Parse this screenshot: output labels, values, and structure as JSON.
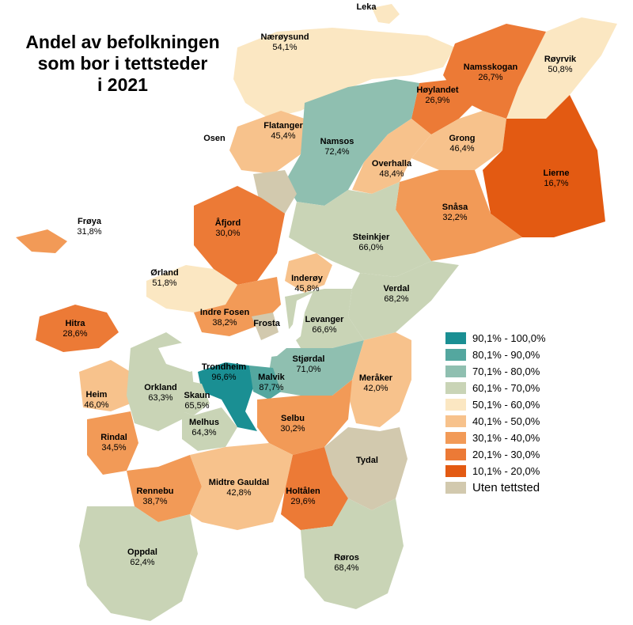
{
  "title": {
    "line1": "Andel av befolkningen",
    "line2": "som bor i tettsteder",
    "line3": "i 2021"
  },
  "colors": {
    "c90": "#1a8f93",
    "c80": "#54a79f",
    "c70": "#8fbfb0",
    "c60": "#c9d4b6",
    "c50": "#fbe7c2",
    "c40": "#f7c28c",
    "c30": "#f29a57",
    "c20": "#ec7a36",
    "c10": "#e35a12",
    "none": "#d2c9ae"
  },
  "legend": [
    {
      "label": "90,1% - 100,0%",
      "color": "#1a8f93"
    },
    {
      "label": "80,1% - 90,0%",
      "color": "#54a79f"
    },
    {
      "label": "70,1% - 80,0%",
      "color": "#8fbfb0"
    },
    {
      "label": "60,1% - 70,0%",
      "color": "#c9d4b6"
    },
    {
      "label": "50,1% - 60,0%",
      "color": "#fbe7c2"
    },
    {
      "label": "40,1% - 50,0%",
      "color": "#f7c28c"
    },
    {
      "label": "30,1% - 40,0%",
      "color": "#f29a57"
    },
    {
      "label": "20,1% - 30,0%",
      "color": "#ec7a36"
    },
    {
      "label": "10,1% - 20,0%",
      "color": "#e35a12"
    },
    {
      "label": "Uten tettsted",
      "color": "#d2c9ae"
    }
  ],
  "municipalities": [
    {
      "name": "Leka",
      "value": ""
    },
    {
      "name": "Nærøysund",
      "value": "54,1%"
    },
    {
      "name": "Røyrvik",
      "value": "50,8%"
    },
    {
      "name": "Namsskogan",
      "value": "26,7%"
    },
    {
      "name": "Høylandet",
      "value": "26,9%"
    },
    {
      "name": "Flatanger",
      "value": "45,4%"
    },
    {
      "name": "Namsos",
      "value": "72,4%"
    },
    {
      "name": "Osen",
      "value": ""
    },
    {
      "name": "Grong",
      "value": "46,4%"
    },
    {
      "name": "Overhalla",
      "value": "48,4%"
    },
    {
      "name": "Lierne",
      "value": "16,7%"
    },
    {
      "name": "Frøya",
      "value": "31,8%"
    },
    {
      "name": "Åfjord",
      "value": "30,0%"
    },
    {
      "name": "Snåsa",
      "value": "32,2%"
    },
    {
      "name": "Steinkjer",
      "value": "66,0%"
    },
    {
      "name": "Ørland",
      "value": "51,8%"
    },
    {
      "name": "Inderøy",
      "value": "45,8%"
    },
    {
      "name": "Verdal",
      "value": "68,2%"
    },
    {
      "name": "Indre Fosen",
      "value": "38,2%"
    },
    {
      "name": "Frosta",
      "value": ""
    },
    {
      "name": "Levanger",
      "value": "66,6%"
    },
    {
      "name": "Hitra",
      "value": "28,6%"
    },
    {
      "name": "Stjørdal",
      "value": "71,0%"
    },
    {
      "name": "Trondheim",
      "value": "96,6%"
    },
    {
      "name": "Malvik",
      "value": "87,7%"
    },
    {
      "name": "Meråker",
      "value": "42,0%"
    },
    {
      "name": "Heim",
      "value": "46,0%"
    },
    {
      "name": "Orkland",
      "value": "63,3%"
    },
    {
      "name": "Skaun",
      "value": "65,5%"
    },
    {
      "name": "Melhus",
      "value": "64,3%"
    },
    {
      "name": "Selbu",
      "value": "30,2%"
    },
    {
      "name": "Rindal",
      "value": "34,5%"
    },
    {
      "name": "Tydal",
      "value": ""
    },
    {
      "name": "Rennebu",
      "value": "38,7%"
    },
    {
      "name": "Midtre Gauldal",
      "value": "42,8%"
    },
    {
      "name": "Holtålen",
      "value": "29,6%"
    },
    {
      "name": "Oppdal",
      "value": "62,4%"
    },
    {
      "name": "Røros",
      "value": "68,4%"
    }
  ]
}
